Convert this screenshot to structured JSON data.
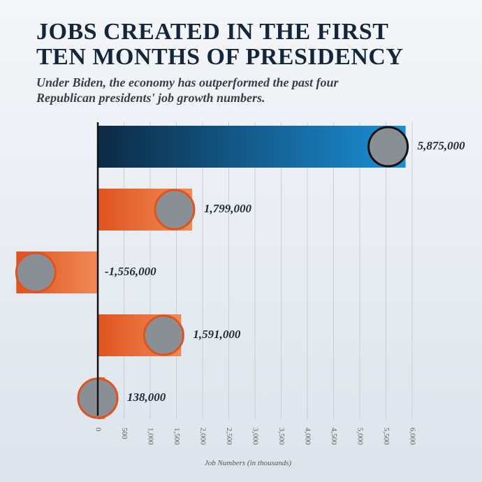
{
  "chart_data": {
    "type": "bar",
    "orientation": "horizontal",
    "title": [
      "JOBS CREATED IN THE FIRST",
      "TEN MONTHS OF PRESIDENCY"
    ],
    "subtitle": [
      "Under Biden, the economy has outperformed the past four",
      "Republican presidents' job growth numbers."
    ],
    "x_label": "Job Numbers (in thousands)",
    "values": [
      5875,
      1799,
      -1556,
      1591,
      138
    ],
    "value_labels": [
      "5,875,000",
      "1,799,000",
      "-1,556,000",
      "1,591,000",
      "138,000"
    ],
    "colors": [
      "#1b8fd6",
      "#e8612c",
      "#e8612c",
      "#e8612c",
      "#e8612c"
    ],
    "xlim": [
      -1867,
      6000
    ],
    "xticks": [
      0,
      500,
      {
        "value": 1000,
        "label": "1,000"
      },
      {
        "value": 1500,
        "label": "1,500"
      },
      {
        "value": 2000,
        "label": "2,000"
      },
      {
        "value": 2500,
        "label": "2,500"
      },
      {
        "value": 3000,
        "label": "3,000"
      },
      {
        "value": 3500,
        "label": "3,500"
      },
      {
        "value": 4000,
        "label": "4,000"
      },
      {
        "value": 4500,
        "label": "4,500"
      },
      {
        "value": 5000,
        "label": "5,000"
      },
      {
        "value": 5500,
        "label": "5,500"
      },
      {
        "value": 6000,
        "label": "6,000"
      }
    ],
    "grid": true
  }
}
